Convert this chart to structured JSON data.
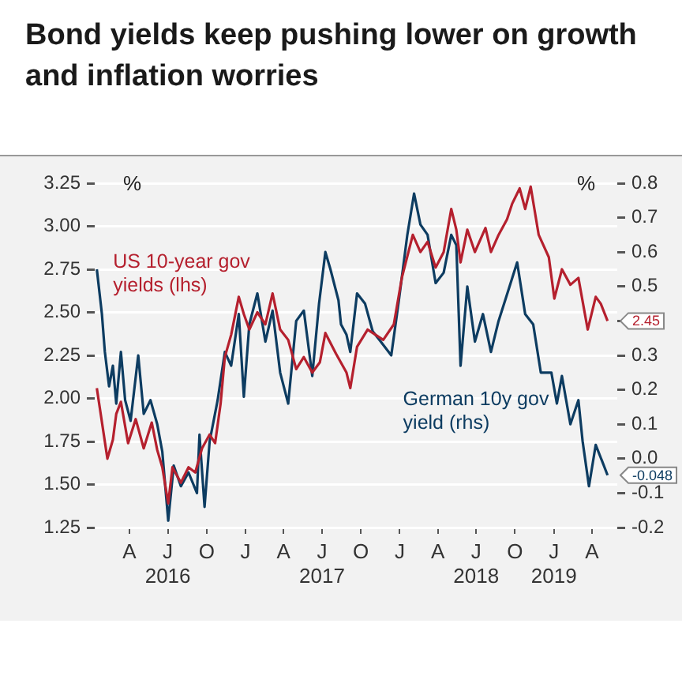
{
  "chart_data": {
    "type": "line",
    "title": "Bond yields keep pushing lower on growth and inflation worries",
    "ylabel": "%",
    "y2label": "%",
    "marker": "none",
    "line_style": "solid",
    "grid": "y",
    "xlim": [
      "2016-01-10",
      "2019-05-31"
    ],
    "xticks": [
      {
        "value": "2016-04-01",
        "label": "A"
      },
      {
        "value": "2016-07-01",
        "label": "J\n2016"
      },
      {
        "value": "2016-10-01",
        "label": "O"
      },
      {
        "value": "2017-01-01",
        "label": "J"
      },
      {
        "value": "2017-04-01",
        "label": "A"
      },
      {
        "value": "2017-07-01",
        "label": "J\n2017"
      },
      {
        "value": "2017-10-01",
        "label": "O"
      },
      {
        "value": "2018-01-01",
        "label": "J"
      },
      {
        "value": "2018-04-01",
        "label": "A"
      },
      {
        "value": "2018-07-01",
        "label": "J\n2018"
      },
      {
        "value": "2018-10-01",
        "label": "O"
      },
      {
        "value": "2019-01-01",
        "label": "J\n2019"
      },
      {
        "value": "2019-04-01",
        "label": "A"
      }
    ],
    "ylim": [
      1.25,
      3.25
    ],
    "yticks": [
      1.25,
      {
        "value": 1.5,
        "label": "1.50"
      },
      1.75,
      {
        "value": 2,
        "label": "2.00"
      },
      2.25,
      {
        "value": 2.5,
        "label": "2.50"
      },
      2.75,
      {
        "value": 3,
        "label": "3.00"
      },
      3.25
    ],
    "y2lim": [
      -0.2,
      0.8
    ],
    "y2ticks": [
      -0.2,
      -0.1,
      {
        "value": 0,
        "label": "0.0"
      },
      0.1,
      0.2,
      0.3,
      {
        "value": 0.4,
        "label": null
      },
      0.5,
      0.6,
      0.7,
      0.8
    ],
    "series": [
      {
        "name": "US 10-year gov yields (lhs)",
        "color": "#b5202e",
        "x": [
          "2016-01-15",
          "2016-02-09",
          "2016-02-22",
          "2016-03-01",
          "2016-03-12",
          "2016-03-29",
          "2016-04-16",
          "2016-05-05",
          "2016-05-24",
          "2016-06-06",
          "2016-06-18",
          "2016-07-02",
          "2016-07-12",
          "2016-08-01",
          "2016-08-19",
          "2016-09-04",
          "2016-09-20",
          "2016-10-08",
          "2016-10-21",
          "2016-11-03",
          "2016-11-13",
          "2016-11-28",
          "2016-12-16",
          "2016-12-28",
          "2017-01-10",
          "2017-01-29",
          "2017-02-17",
          "2017-03-06",
          "2017-03-24",
          "2017-04-12",
          "2017-05-01",
          "2017-05-19",
          "2017-06-08",
          "2017-06-26",
          "2017-07-09",
          "2017-08-03",
          "2017-08-28",
          "2017-09-06",
          "2017-09-22",
          "2017-10-17",
          "2017-11-23",
          "2017-12-18",
          "2018-01-06",
          "2018-02-01",
          "2018-02-19",
          "2018-03-08",
          "2018-03-27",
          "2018-04-15",
          "2018-05-03",
          "2018-05-15",
          "2018-05-25",
          "2018-06-10",
          "2018-06-28",
          "2018-07-23",
          "2018-08-05",
          "2018-08-23",
          "2018-09-12",
          "2018-09-24",
          "2018-10-12",
          "2018-10-25",
          "2018-11-07",
          "2018-11-26",
          "2018-12-20",
          "2019-01-02",
          "2019-01-20",
          "2019-02-09",
          "2019-02-28",
          "2019-03-22",
          "2019-04-10",
          "2019-04-22",
          "2019-05-08"
        ],
        "values": [
          2.06,
          1.65,
          1.76,
          1.91,
          1.98,
          1.74,
          1.88,
          1.71,
          1.86,
          1.7,
          1.6,
          1.39,
          1.6,
          1.51,
          1.6,
          1.57,
          1.71,
          1.79,
          1.74,
          1.97,
          2.24,
          2.37,
          2.59,
          2.49,
          2.4,
          2.5,
          2.43,
          2.61,
          2.4,
          2.34,
          2.17,
          2.24,
          2.15,
          2.21,
          2.38,
          2.26,
          2.15,
          2.06,
          2.3,
          2.4,
          2.34,
          2.43,
          2.7,
          2.95,
          2.85,
          2.91,
          2.76,
          2.85,
          3.1,
          2.98,
          2.79,
          2.98,
          2.85,
          2.99,
          2.85,
          2.95,
          3.04,
          3.13,
          3.22,
          3.1,
          3.23,
          2.95,
          2.82,
          2.58,
          2.75,
          2.66,
          2.7,
          2.4,
          2.59,
          2.55,
          2.45
        ],
        "value_labels": [
          null,
          null,
          null,
          null,
          null,
          null,
          null,
          null,
          null,
          null,
          null,
          null,
          null,
          null,
          null,
          null,
          null,
          null,
          null,
          null,
          null,
          null,
          null,
          null,
          null,
          null,
          null,
          null,
          null,
          null,
          null,
          null,
          null,
          null,
          null,
          null,
          null,
          null,
          null,
          null,
          null,
          null,
          null,
          null,
          null,
          null,
          null,
          null,
          null,
          null,
          null,
          null,
          null,
          null,
          null,
          null,
          null,
          null,
          null,
          null,
          null,
          null,
          null,
          null,
          null,
          null,
          null,
          null,
          null,
          null,
          "2.45"
        ]
      },
      {
        "name": "German 10y gov yield (rhs)",
        "color": "#0d3c61",
        "axis": "y2",
        "x": [
          "2016-01-15",
          "2016-01-27",
          "2016-02-03",
          "2016-02-13",
          "2016-02-22",
          "2016-03-01",
          "2016-03-12",
          "2016-03-22",
          "2016-04-04",
          "2016-04-22",
          "2016-05-05",
          "2016-05-21",
          "2016-06-06",
          "2016-06-18",
          "2016-07-02",
          "2016-07-15",
          "2016-08-01",
          "2016-08-19",
          "2016-09-08",
          "2016-09-14",
          "2016-09-26",
          "2016-10-08",
          "2016-10-27",
          "2016-11-13",
          "2016-11-28",
          "2016-12-16",
          "2016-12-28",
          "2017-01-10",
          "2017-01-29",
          "2017-02-17",
          "2017-03-06",
          "2017-03-24",
          "2017-04-12",
          "2017-05-01",
          "2017-05-19",
          "2017-06-08",
          "2017-06-24",
          "2017-07-09",
          "2017-07-21",
          "2017-08-09",
          "2017-08-15",
          "2017-08-28",
          "2017-09-06",
          "2017-09-22",
          "2017-10-11",
          "2017-10-29",
          "2017-11-17",
          "2017-12-12",
          "2017-12-30",
          "2018-01-19",
          "2018-02-04",
          "2018-02-19",
          "2018-03-08",
          "2018-03-27",
          "2018-04-15",
          "2018-05-03",
          "2018-05-15",
          "2018-05-25",
          "2018-06-10",
          "2018-06-28",
          "2018-07-17",
          "2018-08-05",
          "2018-08-23",
          "2018-09-18",
          "2018-10-06",
          "2018-10-25",
          "2018-11-13",
          "2018-12-01",
          "2018-12-26",
          "2019-01-08",
          "2019-01-20",
          "2019-02-09",
          "2019-02-28",
          "2019-03-10",
          "2019-03-25",
          "2019-04-10",
          "2019-04-26",
          "2019-05-08"
        ],
        "values": [
          0.55,
          0.42,
          0.31,
          0.21,
          0.27,
          0.16,
          0.31,
          0.17,
          0.11,
          0.3,
          0.13,
          0.17,
          0.1,
          0.02,
          -0.18,
          -0.02,
          -0.08,
          -0.04,
          -0.1,
          0.07,
          -0.14,
          0.05,
          0.17,
          0.31,
          0.27,
          0.42,
          0.18,
          0.39,
          0.48,
          0.34,
          0.43,
          0.25,
          0.16,
          0.4,
          0.43,
          0.24,
          0.45,
          0.6,
          0.55,
          0.46,
          0.39,
          0.36,
          0.31,
          0.48,
          0.45,
          0.37,
          0.34,
          0.3,
          0.46,
          0.65,
          0.77,
          0.68,
          0.65,
          0.51,
          0.54,
          0.65,
          0.62,
          0.27,
          0.5,
          0.34,
          0.42,
          0.31,
          0.4,
          0.5,
          0.57,
          0.42,
          0.39,
          0.25,
          0.25,
          0.16,
          0.24,
          0.1,
          0.17,
          0.05,
          -0.08,
          0.04,
          -0.01,
          -0.048
        ],
        "value_labels": [
          null,
          null,
          null,
          null,
          null,
          null,
          null,
          null,
          null,
          null,
          null,
          null,
          null,
          null,
          null,
          null,
          null,
          null,
          null,
          null,
          null,
          null,
          null,
          null,
          null,
          null,
          null,
          null,
          null,
          null,
          null,
          null,
          null,
          null,
          null,
          null,
          null,
          null,
          null,
          null,
          null,
          null,
          null,
          null,
          null,
          null,
          null,
          null,
          null,
          null,
          null,
          null,
          null,
          null,
          null,
          null,
          null,
          null,
          null,
          null,
          null,
          null,
          null,
          null,
          null,
          null,
          null,
          null,
          null,
          null,
          null,
          null,
          null,
          null,
          null,
          null,
          null,
          "-0.048"
        ]
      }
    ]
  }
}
